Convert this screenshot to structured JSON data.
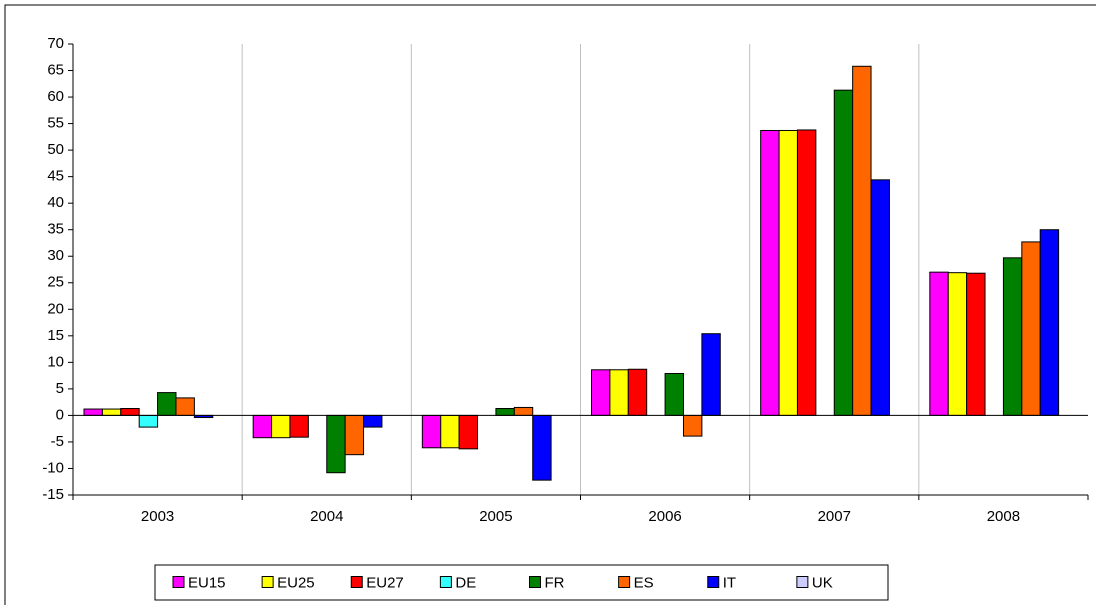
{
  "chart_data": {
    "type": "bar",
    "categories": [
      "2003",
      "2004",
      "2005",
      "2006",
      "2007",
      "2008"
    ],
    "series": [
      {
        "name": "EU15",
        "color": "#ff00ff",
        "values": [
          1.2,
          -4.2,
          -6.1,
          8.6,
          53.7,
          27.0
        ]
      },
      {
        "name": "EU25",
        "color": "#ffff00",
        "values": [
          1.2,
          -4.2,
          -6.1,
          8.6,
          53.7,
          26.9
        ]
      },
      {
        "name": "EU27",
        "color": "#ff0000",
        "values": [
          1.3,
          -4.1,
          -6.3,
          8.7,
          53.8,
          26.8
        ]
      },
      {
        "name": "DE",
        "color": "#33ffff",
        "values": [
          -2.2,
          null,
          null,
          null,
          null,
          null
        ]
      },
      {
        "name": "FR",
        "color": "#008000",
        "values": [
          4.3,
          -10.8,
          1.3,
          7.9,
          61.3,
          29.7
        ]
      },
      {
        "name": "ES",
        "color": "#ff6600",
        "values": [
          3.3,
          -7.4,
          1.5,
          -3.9,
          65.8,
          32.7
        ]
      },
      {
        "name": "IT",
        "color": "#0000ff",
        "values": [
          -0.4,
          -2.2,
          -12.2,
          15.4,
          44.4,
          35.0
        ]
      },
      {
        "name": "UK",
        "color": "#ccccff",
        "values": [
          null,
          null,
          null,
          null,
          null,
          null
        ]
      }
    ],
    "ylim": [
      -15,
      70
    ],
    "yticks": [
      -15,
      -10,
      -5,
      0,
      5,
      10,
      15,
      20,
      25,
      30,
      35,
      40,
      45,
      50,
      55,
      60,
      65,
      70
    ],
    "grid": true,
    "legend": "bottom"
  }
}
